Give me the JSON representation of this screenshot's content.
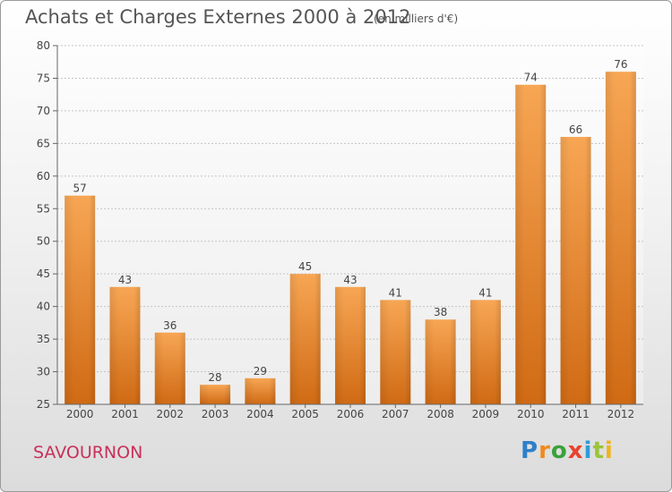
{
  "header": {
    "title": "Achats et Charges Externes 2000 à 2012",
    "unit": "(en milliers d'€)"
  },
  "footer": {
    "commune": "SAVOURNON",
    "logo_letters": [
      {
        "ch": "P",
        "color": "#2f7fc8"
      },
      {
        "ch": "r",
        "color": "#f08a1c"
      },
      {
        "ch": "o",
        "color": "#3aa23a"
      },
      {
        "ch": "x",
        "color": "#e8432e"
      },
      {
        "ch": "i",
        "color": "#2f9bd8"
      },
      {
        "ch": "t",
        "color": "#9bc43a"
      },
      {
        "ch": "i",
        "color": "#f0b41c"
      }
    ]
  },
  "chart_data": {
    "type": "bar",
    "title": "Achats et Charges Externes 2000 à 2012",
    "subtitle": "(en milliers d'€)",
    "categories": [
      "2000",
      "2001",
      "2002",
      "2003",
      "2004",
      "2005",
      "2006",
      "2007",
      "2008",
      "2009",
      "2010",
      "2011",
      "2012"
    ],
    "values": [
      57,
      43,
      36,
      28,
      29,
      45,
      43,
      41,
      38,
      41,
      74,
      66,
      76
    ],
    "ylim": [
      25,
      80
    ],
    "yticks": [
      25,
      30,
      35,
      40,
      45,
      50,
      55,
      60,
      65,
      70,
      75,
      80
    ],
    "grid": true,
    "bar_color": "#f0923a",
    "data_labels": true
  }
}
